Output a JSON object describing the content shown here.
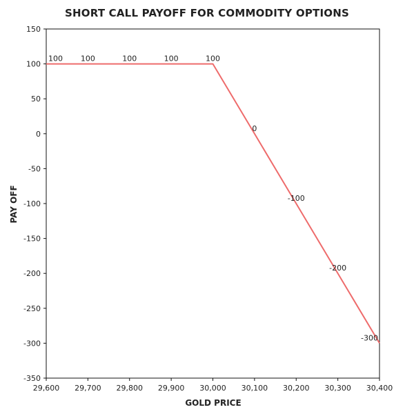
{
  "chart_data": {
    "type": "line",
    "title": "SHORT CALL PAYOFF FOR COMMODITY OPTIONS",
    "xlabel": "GOLD PRICE",
    "ylabel": "PAY OFF",
    "x": [
      29600,
      29700,
      29800,
      29900,
      30000,
      30100,
      30200,
      30300,
      30400
    ],
    "x_tick_labels": [
      "29,600",
      "29,700",
      "29,800",
      "29,900",
      "30,000",
      "30,100",
      "30,200",
      "30,300",
      "30,400"
    ],
    "xlim": [
      29600,
      30400
    ],
    "ylim": [
      -350,
      150
    ],
    "y_ticks": [
      150,
      100,
      50,
      0,
      -50,
      -100,
      -150,
      -200,
      -250,
      -300,
      -350
    ],
    "y_tick_labels": [
      "150",
      "100",
      "50",
      "0",
      "-50",
      "-100",
      "-150",
      "-200",
      "-250",
      "-300",
      "-350"
    ],
    "series": [
      {
        "values": [
          100,
          100,
          100,
          100,
          100,
          0,
          -100,
          -200,
          -300
        ],
        "color": "#ee6b6b"
      }
    ],
    "data_labels": [
      {
        "x": 29600,
        "y": 100,
        "text": "100"
      },
      {
        "x": 29700,
        "y": 100,
        "text": "100"
      },
      {
        "x": 29800,
        "y": 100,
        "text": "100"
      },
      {
        "x": 29900,
        "y": 100,
        "text": "100"
      },
      {
        "x": 30000,
        "y": 100,
        "text": "100"
      },
      {
        "x": 30100,
        "y": 0,
        "text": "0"
      },
      {
        "x": 30200,
        "y": -100,
        "text": "-100"
      },
      {
        "x": 30300,
        "y": -200,
        "text": "-200"
      },
      {
        "x": 30400,
        "y": -300,
        "text": "-300"
      }
    ],
    "grid": false,
    "legend": "none"
  }
}
